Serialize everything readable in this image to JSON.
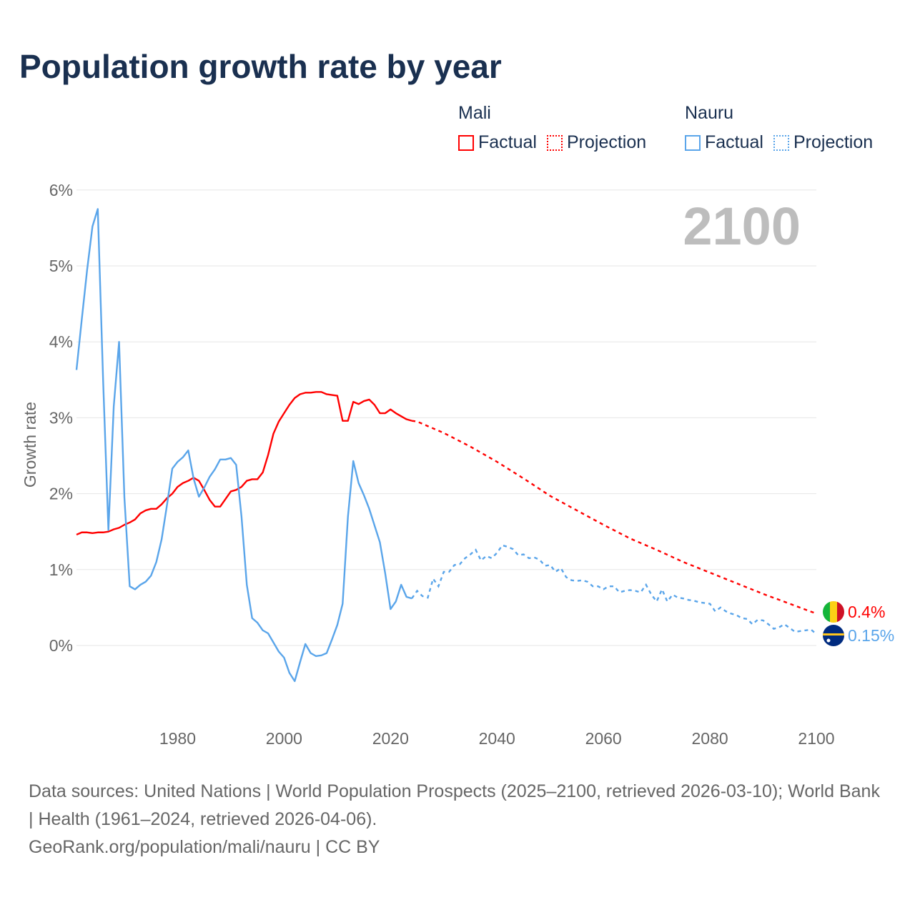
{
  "title": "Population growth rate by year",
  "legend": {
    "groups": [
      {
        "name": "Mali",
        "factual": "Factual",
        "projection": "Projection"
      },
      {
        "name": "Nauru",
        "factual": "Factual",
        "projection": "Projection"
      }
    ]
  },
  "year_display": "2100",
  "footer": {
    "sources": "Data sources: United Nations | World Population Prospects (2025–2100, retrieved 2026-03-10); World Bank | Health (1961–2024, retrieved 2026-04-06).",
    "link": "GeoRank.org/population/mali/nauru | CC BY"
  },
  "colors": {
    "mali": "#ff0000",
    "nauru": "#5aa5ea",
    "text": "#1a3050",
    "axis": "#666666",
    "grid": "#e6e6e6"
  },
  "chart_data": {
    "type": "line",
    "title": "Population growth rate by year",
    "xlabel": "",
    "ylabel": "Growth rate",
    "xlim": [
      1961,
      2100
    ],
    "ylim": [
      -1,
      6
    ],
    "x_ticks": [
      1980,
      2000,
      2020,
      2040,
      2060,
      2080,
      2100
    ],
    "x_tick_labels": [
      "1980",
      "2000",
      "2020",
      "2040",
      "2060",
      "2080",
      "2100"
    ],
    "y_ticks": [
      0,
      1,
      2,
      3,
      4,
      5,
      6
    ],
    "y_tick_labels": [
      "0%",
      "1%",
      "2%",
      "3%",
      "4%",
      "5%",
      "6%"
    ],
    "grid": true,
    "legend_position": "top-right",
    "series": [
      {
        "name": "Mali",
        "color": "#ff0000",
        "end_label": "0.4%",
        "factual": {
          "start_year": 1961,
          "values": [
            1.46,
            1.49,
            1.49,
            1.48,
            1.49,
            1.49,
            1.5,
            1.53,
            1.55,
            1.59,
            1.62,
            1.66,
            1.74,
            1.78,
            1.8,
            1.8,
            1.86,
            1.94,
            2.0,
            2.09,
            2.14,
            2.17,
            2.21,
            2.17,
            2.05,
            1.92,
            1.83,
            1.83,
            1.93,
            2.03,
            2.05,
            2.09,
            2.17,
            2.19,
            2.19,
            2.28,
            2.51,
            2.79,
            2.95,
            3.06,
            3.17,
            3.26,
            3.31,
            3.33,
            3.33,
            3.34,
            3.34,
            3.31,
            3.3,
            3.29,
            2.96,
            2.96,
            3.21,
            3.18,
            3.22,
            3.24,
            3.17,
            3.06,
            3.06,
            3.11,
            3.06,
            3.02,
            2.98,
            2.96
          ]
        },
        "projection": {
          "x": [
            2024,
            2025,
            2030,
            2035,
            2040,
            2045,
            2050,
            2055,
            2060,
            2065,
            2070,
            2075,
            2080,
            2085,
            2090,
            2095,
            2100
          ],
          "values": [
            2.96,
            2.95,
            2.8,
            2.62,
            2.42,
            2.2,
            1.97,
            1.78,
            1.59,
            1.41,
            1.26,
            1.1,
            0.96,
            0.82,
            0.68,
            0.55,
            0.42
          ]
        }
      },
      {
        "name": "Nauru",
        "color": "#5aa5ea",
        "end_label": "0.15%",
        "factual": {
          "start_year": 1961,
          "values": [
            3.63,
            4.3,
            4.95,
            5.52,
            5.75,
            3.5,
            1.52,
            3.15,
            4.0,
            1.95,
            0.78,
            0.74,
            0.8,
            0.84,
            0.92,
            1.1,
            1.4,
            1.85,
            2.33,
            2.42,
            2.48,
            2.57,
            2.2,
            1.96,
            2.08,
            2.22,
            2.32,
            2.45,
            2.45,
            2.47,
            2.38,
            1.7,
            0.8,
            0.36,
            0.3,
            0.2,
            0.16,
            0.04,
            -0.08,
            -0.16,
            -0.36,
            -0.47,
            -0.22,
            0.02,
            -0.1,
            -0.14,
            -0.13,
            -0.1,
            0.08,
            0.27,
            0.55,
            1.7,
            2.43,
            2.14,
            1.98,
            1.8,
            1.58,
            1.36,
            0.95,
            0.48,
            0.58,
            0.8,
            0.64,
            0.62
          ]
        },
        "projection": {
          "start_year": 2024,
          "values": [
            0.62,
            0.72,
            0.65,
            0.63,
            0.88,
            0.78,
            0.97,
            0.97,
            1.06,
            1.07,
            1.15,
            1.2,
            1.26,
            1.12,
            1.18,
            1.15,
            1.22,
            1.32,
            1.3,
            1.27,
            1.19,
            1.2,
            1.15,
            1.16,
            1.13,
            1.05,
            1.06,
            0.97,
            1.02,
            0.9,
            0.86,
            0.85,
            0.86,
            0.84,
            0.78,
            0.78,
            0.74,
            0.78,
            0.78,
            0.7,
            0.72,
            0.73,
            0.72,
            0.7,
            0.8,
            0.67,
            0.58,
            0.74,
            0.58,
            0.67,
            0.63,
            0.62,
            0.6,
            0.59,
            0.57,
            0.56,
            0.55,
            0.45,
            0.5,
            0.45,
            0.42,
            0.4,
            0.36,
            0.35,
            0.28,
            0.34,
            0.33,
            0.28,
            0.22,
            0.24,
            0.28,
            0.23,
            0.18,
            0.19,
            0.2,
            0.21,
            0.15
          ]
        }
      }
    ]
  }
}
